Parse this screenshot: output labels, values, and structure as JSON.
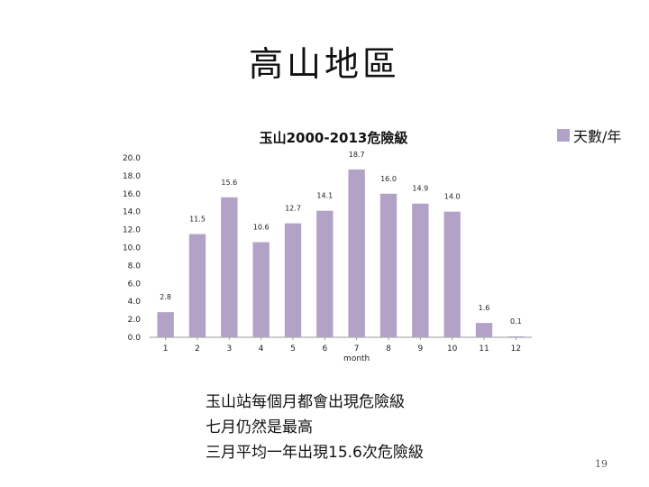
{
  "slide": {
    "title": "高山地區",
    "notes": [
      "玉山站每個月都會出現危險級",
      "七月仍然是最高",
      "三月平均一年出現15.6次危險級"
    ],
    "page_number": "19"
  },
  "chart_data": {
    "type": "bar",
    "title": "玉山2000-2013危險級",
    "xlabel": "month",
    "ylabel": "",
    "categories": [
      "1",
      "2",
      "3",
      "4",
      "5",
      "6",
      "7",
      "8",
      "9",
      "10",
      "11",
      "12"
    ],
    "series": [
      {
        "name": "天數/年",
        "values": [
          2.8,
          11.5,
          15.6,
          10.6,
          12.7,
          14.1,
          18.7,
          16.0,
          14.9,
          14.0,
          1.6,
          0.1
        ],
        "labels": [
          "2.8",
          "11.5",
          "15.6",
          "10.6",
          "12.7",
          "14.1",
          "18.7",
          "16.0",
          "14.9",
          "14.0",
          "1.6",
          "0.1"
        ]
      }
    ],
    "ylim": [
      0,
      20
    ],
    "yticks": [
      "0.0",
      "2.0",
      "4.0",
      "6.0",
      "8.0",
      "10.0",
      "12.0",
      "14.0",
      "16.0",
      "18.0",
      "20.0"
    ],
    "bar_color": "#b3a2c7",
    "grid": false,
    "legend_position": "top-right"
  }
}
